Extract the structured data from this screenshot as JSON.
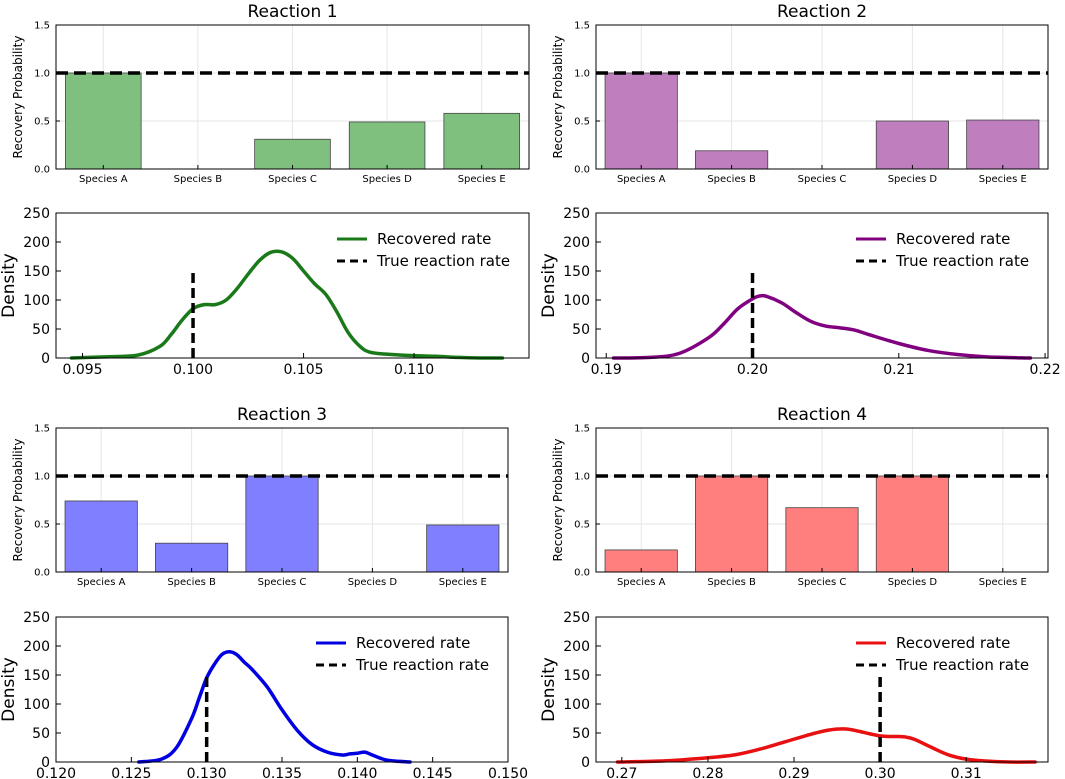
{
  "chart_data": [
    {
      "reaction": "Reaction 1",
      "bar": {
        "type": "bar",
        "title": "Reaction 1",
        "ylabel": "Recovery Probability",
        "categories": [
          "Species A",
          "Species B",
          "Species C",
          "Species D",
          "Species E"
        ],
        "values": [
          1.0,
          0.0,
          0.31,
          0.49,
          0.58
        ],
        "ylim": [
          0,
          1.5
        ],
        "yticks": [
          0.0,
          0.5,
          1.0,
          1.5
        ],
        "ytick_labels": [
          "0.0",
          "0.5",
          "1.0",
          "1.5"
        ],
        "reference_line": 1.0,
        "color": "#7fc07f"
      },
      "density": {
        "type": "line",
        "ylabel": "Density",
        "xlim": [
          0.0938,
          0.1152
        ],
        "ylim": [
          0,
          250
        ],
        "xticks": [
          0.095,
          0.1,
          0.105,
          0.11
        ],
        "xtick_labels": [
          "0.095",
          "0.100",
          "0.105",
          "0.110"
        ],
        "yticks": [
          0,
          50,
          100,
          150,
          200,
          250
        ],
        "ytick_labels": [
          "0",
          "50",
          "100",
          "150",
          "200",
          "250"
        ],
        "legend": [
          "Recovered rate",
          "True reaction rate"
        ],
        "legend_position": "top-right",
        "color": "#1a7a1a",
        "true_rate": 0.1,
        "true_line_top": 150,
        "x": [
          0.0945,
          0.096,
          0.0975,
          0.0985,
          0.099,
          0.0995,
          0.1,
          0.1005,
          0.101,
          0.1015,
          0.102,
          0.1025,
          0.103,
          0.1035,
          0.104,
          0.1045,
          0.105,
          0.1055,
          0.106,
          0.1065,
          0.107,
          0.1075,
          0.108,
          0.109,
          0.11,
          0.111,
          0.112,
          0.113,
          0.114
        ],
        "y": [
          0,
          2,
          5,
          20,
          40,
          65,
          85,
          92,
          92,
          100,
          120,
          145,
          168,
          182,
          183,
          172,
          150,
          128,
          110,
          80,
          45,
          22,
          10,
          6,
          4,
          3,
          1,
          0,
          0
        ]
      }
    },
    {
      "reaction": "Reaction 2",
      "bar": {
        "type": "bar",
        "title": "Reaction 2",
        "ylabel": "Recovery Probability",
        "categories": [
          "Species A",
          "Species B",
          "Species C",
          "Species D",
          "Species E"
        ],
        "values": [
          1.0,
          0.19,
          0.0,
          0.5,
          0.51
        ],
        "ylim": [
          0,
          1.5
        ],
        "yticks": [
          0.0,
          0.5,
          1.0,
          1.5
        ],
        "ytick_labels": [
          "0.0",
          "0.5",
          "1.0",
          "1.5"
        ],
        "reference_line": 1.0,
        "color": "#bf7fbf"
      },
      "density": {
        "type": "line",
        "ylabel": "Density",
        "xlim": [
          0.1893,
          0.2202
        ],
        "ylim": [
          0,
          250
        ],
        "xticks": [
          0.19,
          0.2,
          0.21,
          0.22
        ],
        "xtick_labels": [
          "0.19",
          "0.20",
          "0.21",
          "0.22"
        ],
        "yticks": [
          0,
          50,
          100,
          150,
          200,
          250
        ],
        "ytick_labels": [
          "0",
          "50",
          "100",
          "150",
          "200",
          "250"
        ],
        "legend": [
          "Recovered rate",
          "True reaction rate"
        ],
        "legend_position": "top-right",
        "color": "#800080",
        "true_rate": 0.2,
        "true_line_top": 150,
        "x": [
          0.1905,
          0.193,
          0.195,
          0.197,
          0.198,
          0.199,
          0.2,
          0.2005,
          0.201,
          0.202,
          0.203,
          0.204,
          0.205,
          0.206,
          0.207,
          0.208,
          0.21,
          0.212,
          0.214,
          0.216,
          0.219
        ],
        "y": [
          0,
          1,
          8,
          35,
          58,
          85,
          102,
          107,
          106,
          95,
          78,
          63,
          55,
          52,
          48,
          40,
          25,
          13,
          6,
          2,
          0
        ]
      }
    },
    {
      "reaction": "Reaction 3",
      "bar": {
        "type": "bar",
        "title": "Reaction 3",
        "ylabel": "Recovery Probability",
        "categories": [
          "Species A",
          "Species B",
          "Species C",
          "Species D",
          "Species E"
        ],
        "values": [
          0.74,
          0.3,
          1.0,
          0.0,
          0.49
        ],
        "ylim": [
          0,
          1.5
        ],
        "yticks": [
          0.0,
          0.5,
          1.0,
          1.5
        ],
        "ytick_labels": [
          "0.0",
          "0.5",
          "1.0",
          "1.5"
        ],
        "reference_line": 1.0,
        "color": "#7f7fff"
      },
      "density": {
        "type": "line",
        "ylabel": "Density",
        "xlim": [
          0.12,
          0.15
        ],
        "ylim": [
          0,
          250
        ],
        "xticks": [
          0.12,
          0.125,
          0.13,
          0.135,
          0.14,
          0.145,
          0.15
        ],
        "xtick_labels": [
          "0.120",
          "0.125",
          "0.130",
          "0.135",
          "0.140",
          "0.145",
          "0.150"
        ],
        "yticks": [
          0,
          50,
          100,
          150,
          200,
          250
        ],
        "ytick_labels": [
          "0",
          "50",
          "100",
          "150",
          "200",
          "250"
        ],
        "legend": [
          "Recovered rate",
          "True reaction rate"
        ],
        "legend_position": "top-right",
        "color": "#0000e0",
        "true_rate": 0.13,
        "true_line_top": 150,
        "x": [
          0.1255,
          0.127,
          0.128,
          0.129,
          0.1295,
          0.13,
          0.1305,
          0.131,
          0.1315,
          0.132,
          0.1325,
          0.133,
          0.134,
          0.135,
          0.136,
          0.137,
          0.138,
          0.139,
          0.1395,
          0.14,
          0.1405,
          0.141,
          0.142,
          0.1435
        ],
        "y": [
          0,
          5,
          25,
          75,
          110,
          145,
          168,
          185,
          190,
          185,
          172,
          160,
          130,
          90,
          55,
          30,
          17,
          12,
          14,
          15,
          17,
          12,
          3,
          0
        ]
      }
    },
    {
      "reaction": "Reaction 4",
      "bar": {
        "type": "bar",
        "title": "Reaction 4",
        "ylabel": "Recovery Probability",
        "categories": [
          "Species A",
          "Species B",
          "Species C",
          "Species D",
          "Species E"
        ],
        "values": [
          0.23,
          1.0,
          0.67,
          1.0,
          0.0
        ],
        "ylim": [
          0,
          1.5
        ],
        "yticks": [
          0.0,
          0.5,
          1.0,
          1.5
        ],
        "ytick_labels": [
          "0.0",
          "0.5",
          "1.0",
          "1.5"
        ],
        "reference_line": 1.0,
        "color": "#ff7f7f"
      },
      "density": {
        "type": "line",
        "ylabel": "Density",
        "xlim": [
          0.267,
          0.3195
        ],
        "ylim": [
          0,
          250
        ],
        "xticks": [
          0.27,
          0.28,
          0.29,
          0.3,
          0.31
        ],
        "xtick_labels": [
          "0.27",
          "0.28",
          "0.29",
          "0.30",
          "0.31"
        ],
        "yticks": [
          0,
          50,
          100,
          150,
          200,
          250
        ],
        "ytick_labels": [
          "0",
          "50",
          "100",
          "150",
          "200",
          "250"
        ],
        "legend": [
          "Recovered rate",
          "True reaction rate"
        ],
        "legend_position": "top-right",
        "color": "#e81010",
        "true_rate": 0.3,
        "true_line_top": 150,
        "x": [
          0.2695,
          0.275,
          0.279,
          0.283,
          0.286,
          0.289,
          0.292,
          0.294,
          0.296,
          0.2975,
          0.299,
          0.3,
          0.301,
          0.302,
          0.303,
          0.304,
          0.306,
          0.308,
          0.31,
          0.312,
          0.315,
          0.318
        ],
        "y": [
          0,
          2,
          6,
          12,
          22,
          35,
          48,
          55,
          57,
          53,
          48,
          45,
          44,
          44,
          43,
          39,
          25,
          12,
          5,
          2,
          0,
          0
        ]
      }
    }
  ]
}
